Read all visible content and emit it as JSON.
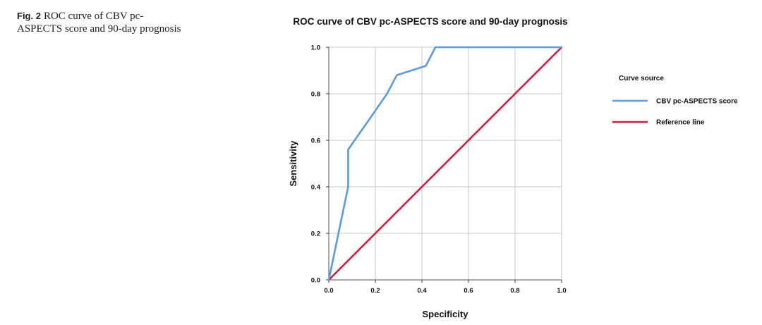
{
  "caption": {
    "label": "Fig. 2",
    "text": "ROC curve of CBV pc-ASPECTS score and 90-day prognosis"
  },
  "chart_data": {
    "type": "line",
    "title": "ROC curve of CBV pc-ASPECTS score and 90-day prognosis",
    "xlabel": "Specificity",
    "ylabel": "Sensitivity",
    "xlim": [
      0,
      1
    ],
    "ylim": [
      0,
      1
    ],
    "xticks": [
      "0.0",
      "0.2",
      "0.4",
      "0.6",
      "0.8",
      "1.0"
    ],
    "yticks": [
      "0.0",
      "0.2",
      "0.4",
      "0.6",
      "0.8",
      "1.0"
    ],
    "grid": true,
    "legend": {
      "title": "Curve source",
      "position": "right"
    },
    "series": [
      {
        "name": "CBV pc-ASPECTS score",
        "color": "#5b9bdf",
        "x": [
          0.0,
          0.083,
          0.083,
          0.167,
          0.25,
          0.292,
          0.417,
          0.458,
          0.5,
          1.0
        ],
        "y": [
          0.0,
          0.4,
          0.56,
          0.68,
          0.8,
          0.88,
          0.92,
          1.0,
          1.0,
          1.0
        ]
      },
      {
        "name": "Reference line",
        "color": "#cc1f3f",
        "x": [
          0.0,
          1.0
        ],
        "y": [
          0.0,
          1.0
        ]
      }
    ]
  }
}
